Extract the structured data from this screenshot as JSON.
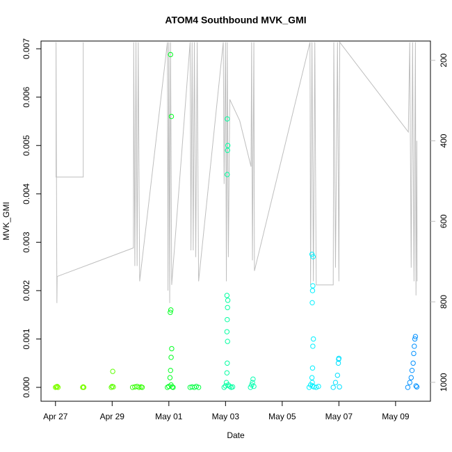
{
  "chart_data": {
    "type": "scatter",
    "title": "ATOM4 Southbound MVK_GMI",
    "x_label": "Date",
    "y_label": "MVK_GMI",
    "xlim": [
      -0.51,
      13.23
    ],
    "xticks": [
      {
        "value": 0,
        "label": "Apr 27"
      },
      {
        "value": 2,
        "label": "Apr 29"
      },
      {
        "value": 4,
        "label": "May 01"
      },
      {
        "value": 6,
        "label": "May 03"
      },
      {
        "value": 8,
        "label": "May 05"
      },
      {
        "value": 10,
        "label": "May 07"
      },
      {
        "value": 12,
        "label": "May 09"
      }
    ],
    "ylim": [
      -0.000287,
      0.00716
    ],
    "yticks": [
      {
        "value": 0,
        "label": "0.000"
      },
      {
        "value": 0.001,
        "label": "0.001"
      },
      {
        "value": 0.002,
        "label": "0.002"
      },
      {
        "value": 0.003,
        "label": "0.003"
      },
      {
        "value": 0.004,
        "label": "0.004"
      },
      {
        "value": 0.005,
        "label": "0.005"
      },
      {
        "value": 0.006,
        "label": "0.006"
      },
      {
        "value": 0.007,
        "label": "0.007"
      }
    ],
    "y2lim": [
      1047,
      152
    ],
    "y2ticks": [
      200,
      400,
      600,
      800,
      1000
    ],
    "y2_color": "#bebebe",
    "series": [
      {
        "axis": "y2",
        "color": "#bebebe",
        "x": [
          0.98,
          0.98,
          0.02,
          0.02,
          0.05,
          0.06,
          2.75,
          2.76,
          2.8,
          2.84,
          2.88,
          2.92,
          2.97,
          3.95,
          3.97,
          4.0,
          4.03,
          4.06,
          4.1,
          4.75,
          4.78,
          4.82,
          4.86,
          4.9,
          4.95,
          5.0,
          5.05,
          5.92,
          5.95,
          6.0,
          6.03,
          6.06,
          6.1,
          6.15,
          6.5,
          6.9,
          6.92,
          6.95,
          7.0,
          7.02,
          8.98,
          9.0,
          9.05,
          9.1,
          9.15,
          9.2,
          9.8,
          9.82,
          9.88,
          9.95,
          10.0,
          10.03,
          12.45,
          12.5,
          12.55,
          12.6,
          12.65,
          12.7,
          12.72,
          12.75,
          12.76
        ],
        "values": [
          155,
          490,
          490,
          155,
          803,
          737,
          666,
          155,
          711,
          155,
          711,
          155,
          749,
          155,
          772,
          155,
          803,
          155,
          758,
          155,
          672,
          155,
          672,
          155,
          689,
          155,
          749,
          155,
          507,
          155,
          749,
          155,
          689,
          297,
          350,
          464,
          155,
          697,
          155,
          723,
          155,
          758,
          155,
          749,
          155,
          758,
          758,
          155,
          715,
          155,
          749,
          155,
          378,
          155,
          715,
          155,
          749,
          155,
          784,
          400,
          749
        ]
      },
      {
        "color": "#80ff00",
        "x": [
          0.0,
          0.03,
          0.06,
          0.09,
          0.05
        ],
        "values": [
          0,
          1e-05,
          2e-05,
          0,
          1e-05
        ]
      },
      {
        "color": "#7aff00",
        "x": [
          0.96,
          0.98,
          1.0
        ],
        "values": [
          0,
          1e-05,
          0
        ]
      },
      {
        "color": "#5cff00",
        "x": [
          1.97,
          2.0,
          2.02,
          2.04
        ],
        "values": [
          0,
          2e-05,
          0.00033,
          1e-05
        ]
      },
      {
        "color": "#30ff00",
        "x": [
          2.72,
          2.8,
          2.88,
          2.95,
          3.02,
          3.06
        ],
        "values": [
          0,
          1e-05,
          2e-05,
          0,
          1e-05,
          0
        ]
      },
      {
        "color": "#00ff20",
        "x": [
          3.95,
          4.0,
          4.04,
          4.06,
          4.08,
          4.1,
          4.05,
          4.07,
          4.09,
          4.06,
          4.08,
          4.12,
          4.15
        ],
        "values": [
          0,
          2e-05,
          0.0002,
          0.00035,
          0.00062,
          0.0008,
          0.00155,
          0.0016,
          0.0056,
          0.00688,
          5e-05,
          1e-05,
          0
        ]
      },
      {
        "color": "#00ff40",
        "x": [
          4.75,
          4.82,
          4.9,
          4.97,
          5.05
        ],
        "values": [
          0,
          1e-05,
          0,
          2e-05,
          0
        ]
      },
      {
        "color": "#00ffa0",
        "x": [
          5.95,
          6.0,
          6.03,
          6.05,
          6.06,
          6.07,
          6.05,
          6.06,
          6.07,
          6.08,
          6.05,
          6.06,
          6.07,
          6.08,
          6.06,
          6.1,
          6.15,
          6.2,
          6.25
        ],
        "values": [
          0,
          3e-05,
          0.0001,
          0.0003,
          0.0005,
          0.00095,
          0.00115,
          0.0014,
          0.00165,
          0.0018,
          0.0019,
          0.0044,
          0.0049,
          0.005,
          0.00555,
          5e-05,
          2e-05,
          0,
          1e-05
        ]
      },
      {
        "color": "#00ffb0",
        "x": [
          6.88,
          6.92,
          6.95,
          6.97,
          7.0
        ],
        "values": [
          0,
          5e-05,
          0.0001,
          0.00017,
          2e-05
        ]
      },
      {
        "color": "#00f0ff",
        "x": [
          8.95,
          9.0,
          9.05,
          9.07,
          9.08,
          9.1,
          9.06,
          9.07,
          9.08,
          9.09,
          9.05,
          9.06,
          9.07,
          9.12,
          9.2,
          9.28
        ],
        "values": [
          0,
          5e-05,
          0.0002,
          0.0004,
          0.00085,
          0.001,
          0.00175,
          0.002,
          0.0021,
          0.0027,
          0.00275,
          0.0001,
          3e-05,
          1e-05,
          0,
          2e-05
        ]
      },
      {
        "color": "#00e0ff",
        "x": [
          9.8,
          9.88,
          9.95,
          9.98,
          9.99,
          10.0,
          10.02
        ],
        "values": [
          0,
          0.0001,
          0.00025,
          0.0005,
          0.00058,
          0.0006,
          1e-05
        ]
      },
      {
        "color": "#0090ff",
        "x": [
          12.43,
          12.5,
          12.55,
          12.58,
          12.62,
          12.64,
          12.66,
          12.68,
          12.7,
          12.72,
          12.75
        ],
        "values": [
          0,
          0.0001,
          0.0002,
          0.00035,
          0.0005,
          0.0007,
          0.00085,
          0.001,
          0.00105,
          3e-05,
          1e-05
        ]
      }
    ]
  }
}
